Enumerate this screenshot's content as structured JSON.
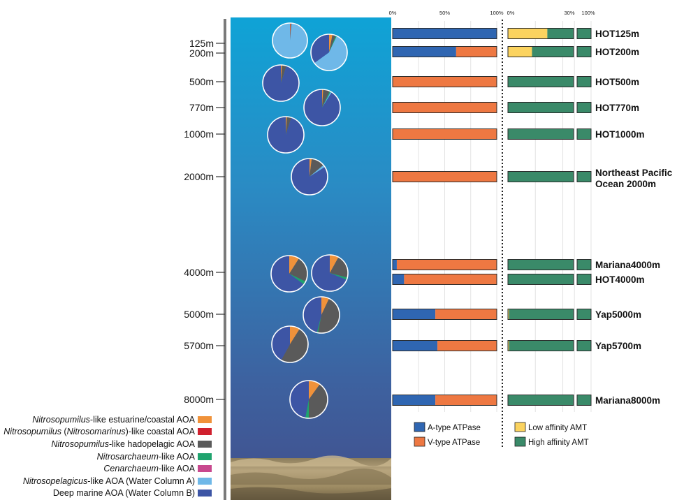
{
  "colors": {
    "estuarine": "#F0923A",
    "coastal_red": "#D0202E",
    "hadopelagic": "#5A5A5A",
    "nitrosarchaeum": "#1FA36E",
    "cenarchaeum": "#C8488E",
    "water_col_a": "#6FB8E8",
    "water_col_b": "#3D55A5",
    "a_type": "#2F66B2",
    "v_type": "#EE7842",
    "low_amt": "#FBD35F",
    "high_amt": "#3A8A69"
  },
  "chart_data": {
    "type": "bar",
    "depth_labels": [
      "125m",
      "200m",
      "500m",
      "770m",
      "1000m",
      "2000m",
      "4000m",
      "5000m",
      "5700m",
      "8000m"
    ],
    "sample_labels": [
      "HOT125m",
      "HOT200m",
      "HOT500m",
      "HOT770m",
      "HOT1000m",
      "Northeast Pacific Ocean 2000m",
      "Mariana4000m",
      "HOT4000m",
      "Yap5000m",
      "Yap5700m",
      "Mariana8000m"
    ],
    "atpase_axis_ticks": [
      "0%",
      "50%",
      "100%"
    ],
    "amt_axis_ticks": [
      "0%",
      "30%",
      "100%"
    ],
    "atpase": [
      {
        "sample": "HOT125m",
        "a_type": 100,
        "v_type": 0
      },
      {
        "sample": "HOT200m",
        "a_type": 61,
        "v_type": 39
      },
      {
        "sample": "HOT500m",
        "a_type": 0,
        "v_type": 100
      },
      {
        "sample": "HOT770m",
        "a_type": 0,
        "v_type": 100
      },
      {
        "sample": "HOT1000m",
        "a_type": 0,
        "v_type": 100
      },
      {
        "sample": "Northeast Pacific Ocean 2000m",
        "a_type": 0,
        "v_type": 100
      },
      {
        "sample": "Mariana4000m",
        "a_type": 4,
        "v_type": 96
      },
      {
        "sample": "HOT4000m",
        "a_type": 11,
        "v_type": 89
      },
      {
        "sample": "Yap5000m",
        "a_type": 41,
        "v_type": 59
      },
      {
        "sample": "Yap5700m",
        "a_type": 43,
        "v_type": 57
      },
      {
        "sample": "Mariana8000m",
        "a_type": 41,
        "v_type": 59
      }
    ],
    "amt": [
      {
        "sample": "HOT125m",
        "low": 18,
        "high": 82
      },
      {
        "sample": "HOT200m",
        "low": 11,
        "high": 89
      },
      {
        "sample": "HOT500m",
        "low": 0,
        "high": 100
      },
      {
        "sample": "HOT770m",
        "low": 0,
        "high": 100
      },
      {
        "sample": "HOT1000m",
        "low": 0,
        "high": 100
      },
      {
        "sample": "Northeast Pacific Ocean 2000m",
        "low": 0,
        "high": 100
      },
      {
        "sample": "Mariana4000m",
        "low": 0,
        "high": 100
      },
      {
        "sample": "HOT4000m",
        "low": 0,
        "high": 100
      },
      {
        "sample": "Yap5000m",
        "low": 0.5,
        "high": 99.5
      },
      {
        "sample": "Yap5700m",
        "low": 0.5,
        "high": 99.5
      },
      {
        "sample": "Mariana8000m",
        "low": 0,
        "high": 100
      }
    ],
    "pies": [
      {
        "depth": "125m",
        "values": {
          "estuarine": 0.5,
          "coastal_red": 0.5,
          "hadopelagic": 0.5,
          "water_col_a": 98.5
        }
      },
      {
        "depth": "200m",
        "values": {
          "estuarine": 3,
          "hadopelagic": 3,
          "nitrosarchaeum": 1,
          "water_col_b": 35,
          "water_col_a": 58
        }
      },
      {
        "depth": "500m",
        "values": {
          "estuarine": 1,
          "hadopelagic": 4,
          "water_col_b": 95
        }
      },
      {
        "depth": "770m",
        "values": {
          "estuarine": 1,
          "hadopelagic": 6,
          "nitrosarchaeum": 1,
          "water_col_a": 1,
          "water_col_b": 91
        }
      },
      {
        "depth": "1000m",
        "values": {
          "estuarine": 1,
          "hadopelagic": 4,
          "water_col_b": 95
        }
      },
      {
        "depth": "2000m",
        "values": {
          "estuarine": 2,
          "hadopelagic": 12,
          "water_col_a": 2,
          "water_col_b": 84
        }
      },
      {
        "depth": "Mariana4000m",
        "values": {
          "estuarine": 9,
          "hadopelagic": 23,
          "nitrosarchaeum": 3,
          "water_col_b": 65
        }
      },
      {
        "depth": "HOT4000m",
        "values": {
          "estuarine": 8,
          "hadopelagic": 21,
          "nitrosarchaeum": 2,
          "water_col_b": 69
        }
      },
      {
        "depth": "5000m",
        "values": {
          "estuarine": 7,
          "hadopelagic": 46,
          "nitrosarchaeum": 1,
          "water_col_b": 46
        }
      },
      {
        "depth": "5700m",
        "values": {
          "estuarine": 9,
          "hadopelagic": 49,
          "water_col_b": 42
        }
      },
      {
        "depth": "8000m",
        "values": {
          "estuarine": 10,
          "hadopelagic": 40,
          "nitrosarchaeum": 3,
          "water_col_b": 47
        }
      }
    ]
  },
  "legend_aoa": [
    {
      "key": "estuarine",
      "italic": "Nitrosopumilus",
      "plain": "-like estuarine/coastal AOA"
    },
    {
      "key": "coastal_red",
      "italic": "Nitrosopumilus",
      "plain": " (",
      "italic2": "Nitrosomarinus",
      "plain2": ")-like coastal AOA"
    },
    {
      "key": "hadopelagic",
      "italic": "Nitrosopumilus",
      "plain": "-like hadopelagic AOA"
    },
    {
      "key": "nitrosarchaeum",
      "italic": "Nitrosarchaeum",
      "plain": "-like AOA"
    },
    {
      "key": "cenarchaeum",
      "italic": "Cenarchaeum",
      "plain": "-like AOA"
    },
    {
      "key": "water_col_a",
      "italic": "Nitrosopelagicus",
      "plain": "-like AOA (Water Column A)"
    },
    {
      "key": "water_col_b",
      "italic": "",
      "plain": "Deep marine AOA (Water Column B)"
    }
  ],
  "legend_bars": {
    "a_type": "A-type ATPase",
    "v_type": "V-type ATPase",
    "low_amt": "Low affinity AMT",
    "high_amt": "High affinity AMT"
  }
}
